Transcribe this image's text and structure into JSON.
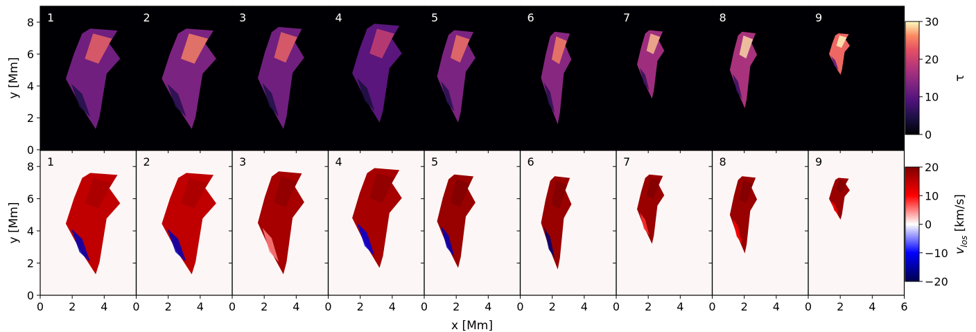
{
  "chart_data": {
    "type": "heatmap",
    "layout": "2 rows x 9 panels, shared axes",
    "xlabel": "x [Mm]",
    "ylabel": "y [Mm]",
    "xlim": [
      0,
      6
    ],
    "ylim": [
      0,
      9
    ],
    "x_ticks": [
      "0",
      "2",
      "4",
      "6"
    ],
    "y_ticks": [
      "0",
      "2",
      "4",
      "6",
      "8"
    ],
    "panel_labels": [
      "1",
      "2",
      "3",
      "4",
      "5",
      "6",
      "7",
      "8",
      "9"
    ],
    "rows": [
      {
        "quantity": "τ",
        "colormap": "magma",
        "background": "#000004",
        "label_color": "#ffffff",
        "colorbar": {
          "label": "τ",
          "range": [
            0,
            30
          ],
          "ticks": [
            "0",
            "10",
            "20",
            "30"
          ]
        },
        "panels": [
          {
            "label": "1",
            "extent_x": [
              1.6,
              5.0
            ],
            "extent_y": [
              1.3,
              7.6
            ],
            "mean_value": 12,
            "high_value": 24
          },
          {
            "label": "2",
            "extent_x": [
              1.6,
              5.0
            ],
            "extent_y": [
              1.3,
              7.6
            ],
            "mean_value": 13,
            "high_value": 26
          },
          {
            "label": "3",
            "extent_x": [
              1.6,
              4.5
            ],
            "extent_y": [
              1.3,
              7.7
            ],
            "mean_value": 12,
            "high_value": 24
          },
          {
            "label": "4",
            "extent_x": [
              1.5,
              4.6
            ],
            "extent_y": [
              1.7,
              7.9
            ],
            "mean_value": 10,
            "high_value": 20
          },
          {
            "label": "5",
            "extent_x": [
              0.8,
              3.2
            ],
            "extent_y": [
              1.7,
              7.5
            ],
            "mean_value": 13,
            "high_value": 25
          },
          {
            "label": "6",
            "extent_x": [
              1.3,
              3.2
            ],
            "extent_y": [
              1.6,
              7.4
            ],
            "mean_value": 14,
            "high_value": 26
          },
          {
            "label": "7",
            "extent_x": [
              1.3,
              3.0
            ],
            "extent_y": [
              3.2,
              7.5
            ],
            "mean_value": 16,
            "high_value": 28
          },
          {
            "label": "8",
            "extent_x": [
              1.1,
              2.8
            ],
            "extent_y": [
              2.6,
              7.4
            ],
            "mean_value": 17,
            "high_value": 29
          },
          {
            "label": "9",
            "extent_x": [
              1.3,
              2.6
            ],
            "extent_y": [
              4.7,
              7.3
            ],
            "mean_value": 24,
            "high_value": 30
          }
        ]
      },
      {
        "quantity": "v_los",
        "colormap": "seismic",
        "background": "#fdf6f6",
        "label_color": "#000000",
        "colorbar": {
          "label": "v",
          "label_sub": "los",
          "label_unit": " [km/s]",
          "range": [
            -20,
            20
          ],
          "ticks": [
            "−20",
            "−10",
            "0",
            "10",
            "20"
          ]
        },
        "panels": [
          {
            "label": "1",
            "extent_x": [
              1.6,
              5.0
            ],
            "extent_y": [
              1.3,
              7.6
            ],
            "mean_value": 15,
            "low_value": -14
          },
          {
            "label": "2",
            "extent_x": [
              1.6,
              5.0
            ],
            "extent_y": [
              1.3,
              7.6
            ],
            "mean_value": 15,
            "low_value": -14
          },
          {
            "label": "3",
            "extent_x": [
              1.6,
              4.5
            ],
            "extent_y": [
              1.3,
              7.7
            ],
            "mean_value": 17,
            "low_value": 5
          },
          {
            "label": "4",
            "extent_x": [
              1.5,
              4.6
            ],
            "extent_y": [
              1.7,
              7.9
            ],
            "mean_value": 17,
            "low_value": -12
          },
          {
            "label": "5",
            "extent_x": [
              0.8,
              3.2
            ],
            "extent_y": [
              1.7,
              7.5
            ],
            "mean_value": 18,
            "low_value": -14
          },
          {
            "label": "6",
            "extent_x": [
              1.3,
              3.2
            ],
            "extent_y": [
              1.6,
              7.4
            ],
            "mean_value": 18,
            "low_value": -18
          },
          {
            "label": "7",
            "extent_x": [
              1.3,
              3.0
            ],
            "extent_y": [
              3.2,
              7.5
            ],
            "mean_value": 18,
            "low_value": 8
          },
          {
            "label": "8",
            "extent_x": [
              1.1,
              2.8
            ],
            "extent_y": [
              2.6,
              7.4
            ],
            "mean_value": 18,
            "low_value": 10
          },
          {
            "label": "9",
            "extent_x": [
              1.3,
              2.6
            ],
            "extent_y": [
              4.7,
              7.3
            ],
            "mean_value": 18,
            "low_value": 10
          }
        ]
      }
    ],
    "grid": false,
    "legend": "none (colorbars at right)"
  }
}
